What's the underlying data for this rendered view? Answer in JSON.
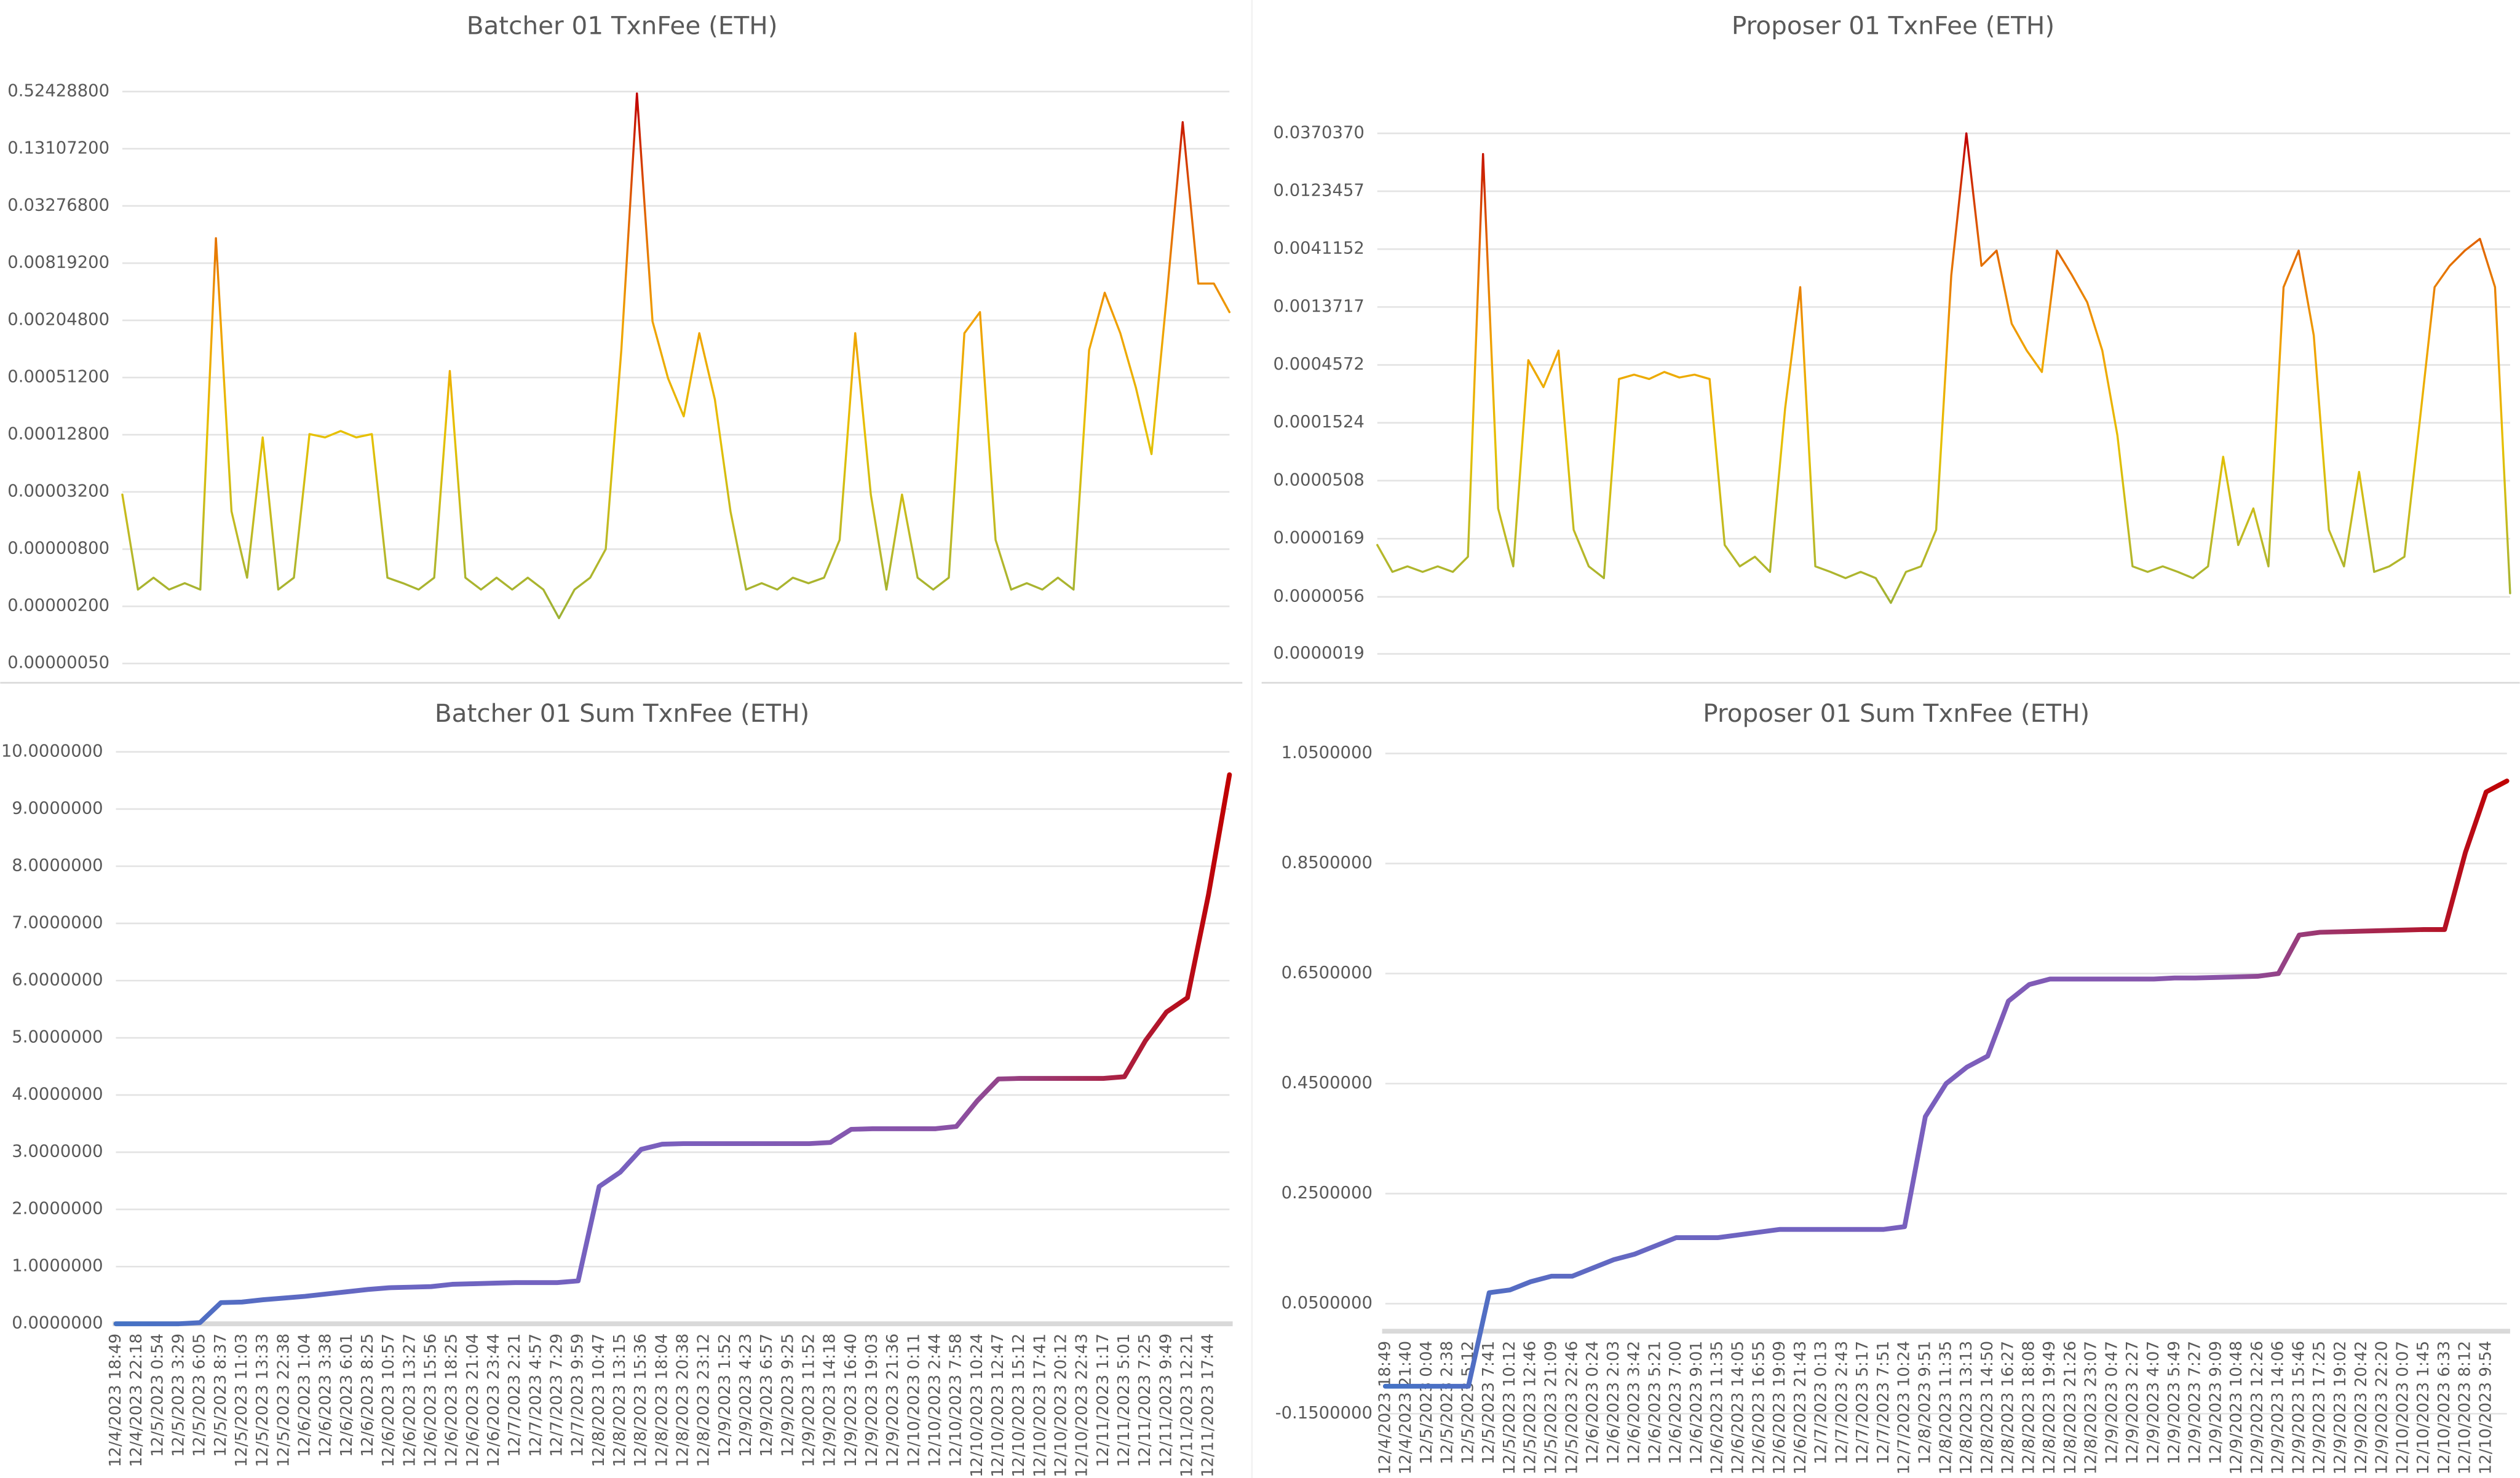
{
  "chart_data": [
    {
      "type": "line",
      "title": "Batcher 01 TxnFee (ETH)",
      "log_scale": true,
      "grid": true,
      "gradient_direction": "vertical",
      "color_stops": [
        "#8aac3a",
        "#b8b82a",
        "#e6c000",
        "#f0a000",
        "#e06000",
        "#c00000"
      ],
      "ylim": [
        5e-07,
        0.524288
      ],
      "yticks": [
        {
          "value": 5e-07,
          "label": "0.00000050"
        },
        {
          "value": 2e-06,
          "label": "0.00000200"
        },
        {
          "value": 8e-06,
          "label": "0.00000800"
        },
        {
          "value": 3.2e-05,
          "label": "0.00003200"
        },
        {
          "value": 0.000128,
          "label": "0.00012800"
        },
        {
          "value": 0.000512,
          "label": "0.00051200"
        },
        {
          "value": 0.002048,
          "label": "0.00204800"
        },
        {
          "value": 0.008192,
          "label": "0.00819200"
        },
        {
          "value": 0.032768,
          "label": "0.03276800"
        },
        {
          "value": 0.131072,
          "label": "0.13107200"
        },
        {
          "value": 0.524288,
          "label": "0.52428800"
        }
      ],
      "values": [
        3e-05,
        3e-06,
        4e-06,
        3e-06,
        3.5e-06,
        3e-06,
        0.015,
        2e-05,
        4e-06,
        0.00012,
        3e-06,
        4e-06,
        0.00013,
        0.00012,
        0.00014,
        0.00012,
        0.00013,
        4e-06,
        3.5e-06,
        3e-06,
        4e-06,
        0.0006,
        4e-06,
        3e-06,
        4e-06,
        3e-06,
        4e-06,
        3e-06,
        1.5e-06,
        3e-06,
        4e-06,
        8e-06,
        0.001,
        0.5,
        0.002,
        0.0005,
        0.0002,
        0.0015,
        0.0003,
        2e-05,
        3e-06,
        3.5e-06,
        3e-06,
        4e-06,
        3.5e-06,
        4e-06,
        1e-05,
        0.0015,
        3e-05,
        3e-06,
        3e-05,
        4e-06,
        3e-06,
        4e-06,
        0.0015,
        0.0025,
        1e-05,
        3e-06,
        3.5e-06,
        3e-06,
        4e-06,
        3e-06,
        0.001,
        0.004,
        0.0015,
        0.0004,
        8e-05,
        0.004,
        0.25,
        0.005,
        0.005,
        0.0025
      ]
    },
    {
      "type": "line",
      "title": "Proposer 01 TxnFee (ETH)",
      "log_scale": true,
      "grid": true,
      "gradient_direction": "vertical",
      "color_stops": [
        "#8aac3a",
        "#b8b82a",
        "#e6c000",
        "#f0a000",
        "#e06000",
        "#c00000"
      ],
      "ylim": [
        1.9e-06,
        0.037037
      ],
      "yticks": [
        {
          "value": 1.9e-06,
          "label": "0.0000019"
        },
        {
          "value": 5.6e-06,
          "label": "0.0000056"
        },
        {
          "value": 1.69e-05,
          "label": "0.0000169"
        },
        {
          "value": 5.08e-05,
          "label": "0.0000508"
        },
        {
          "value": 0.0001524,
          "label": "0.0001524"
        },
        {
          "value": 0.0004572,
          "label": "0.0004572"
        },
        {
          "value": 0.0013717,
          "label": "0.0013717"
        },
        {
          "value": 0.0041152,
          "label": "0.0041152"
        },
        {
          "value": 0.0123457,
          "label": "0.0123457"
        },
        {
          "value": 0.037037,
          "label": "0.0370370"
        }
      ],
      "values": [
        1.5e-05,
        9e-06,
        1e-05,
        9e-06,
        1e-05,
        9e-06,
        1.2e-05,
        0.025,
        3e-05,
        1e-05,
        0.0005,
        0.0003,
        0.0006,
        2e-05,
        1e-05,
        8e-06,
        0.00035,
        0.00038,
        0.00035,
        0.0004,
        0.00036,
        0.00038,
        0.00035,
        1.5e-05,
        1e-05,
        1.2e-05,
        9e-06,
        0.0002,
        0.002,
        1e-05,
        9e-06,
        8e-06,
        9e-06,
        8e-06,
        5e-06,
        9e-06,
        1e-05,
        2e-05,
        0.0025,
        0.037,
        0.003,
        0.004,
        0.001,
        0.0006,
        0.0004,
        0.004,
        0.0025,
        0.0015,
        0.0006,
        0.00012,
        1e-05,
        9e-06,
        1e-05,
        9e-06,
        8e-06,
        1e-05,
        8e-05,
        1.5e-05,
        3e-05,
        1e-05,
        0.002,
        0.004,
        0.0008,
        2e-05,
        1e-05,
        6e-05,
        9e-06,
        1e-05,
        1.2e-05,
        0.00015,
        0.002,
        0.003,
        0.004,
        0.005,
        0.002,
        6e-06
      ]
    },
    {
      "type": "line",
      "title": "Batcher 01 Sum TxnFee (ETH)",
      "log_scale": false,
      "grid": true,
      "gradient_direction": "horizontal",
      "color_stops": [
        "#4472c4",
        "#6a66c2",
        "#7b5fbd",
        "#8a52a6",
        "#c00000"
      ],
      "ylim": [
        0,
        10
      ],
      "yticks": [
        {
          "value": 0,
          "label": "0.0000000"
        },
        {
          "value": 1,
          "label": "1.0000000"
        },
        {
          "value": 2,
          "label": "2.0000000"
        },
        {
          "value": 3,
          "label": "3.0000000"
        },
        {
          "value": 4,
          "label": "4.0000000"
        },
        {
          "value": 5,
          "label": "5.0000000"
        },
        {
          "value": 6,
          "label": "6.0000000"
        },
        {
          "value": 7,
          "label": "7.0000000"
        },
        {
          "value": 8,
          "label": "8.0000000"
        },
        {
          "value": 9,
          "label": "9.0000000"
        },
        {
          "value": 10,
          "label": "10.0000000"
        }
      ],
      "categories": [
        "12/4/2023 18:49",
        "12/4/2023 22:18",
        "12/5/2023 0:54",
        "12/5/2023 3:29",
        "12/5/2023 6:05",
        "12/5/2023 8:37",
        "12/5/2023 11:03",
        "12/5/2023 13:33",
        "12/5/2023 22:38",
        "12/6/2023 1:04",
        "12/6/2023 3:38",
        "12/6/2023 6:01",
        "12/6/2023 8:25",
        "12/6/2023 10:57",
        "12/6/2023 13:27",
        "12/6/2023 15:56",
        "12/6/2023 18:25",
        "12/6/2023 21:04",
        "12/6/2023 23:44",
        "12/7/2023 2:21",
        "12/7/2023 4:57",
        "12/7/2023 7:29",
        "12/7/2023 9:59",
        "12/8/2023 10:47",
        "12/8/2023 13:15",
        "12/8/2023 15:36",
        "12/8/2023 18:04",
        "12/8/2023 20:38",
        "12/8/2023 23:12",
        "12/9/2023 1:52",
        "12/9/2023 4:23",
        "12/9/2023 6:57",
        "12/9/2023 9:25",
        "12/9/2023 11:52",
        "12/9/2023 14:18",
        "12/9/2023 16:40",
        "12/9/2023 19:03",
        "12/9/2023 21:36",
        "12/10/2023 0:11",
        "12/10/2023 2:44",
        "12/10/2023 7:58",
        "12/10/2023 10:24",
        "12/10/2023 12:47",
        "12/10/2023 15:12",
        "12/10/2023 17:41",
        "12/10/2023 20:12",
        "12/10/2023 22:43",
        "12/11/2023 1:17",
        "12/11/2023 5:01",
        "12/11/2023 7:25",
        "12/11/2023 9:49",
        "12/11/2023 12:21",
        "12/11/2023 17:44",
        null
      ],
      "values": [
        0,
        0,
        0,
        0,
        0.02,
        0.37,
        0.38,
        0.42,
        0.45,
        0.48,
        0.52,
        0.56,
        0.6,
        0.63,
        0.64,
        0.65,
        0.69,
        0.7,
        0.71,
        0.72,
        0.72,
        0.72,
        0.75,
        2.4,
        2.65,
        3.05,
        3.14,
        3.15,
        3.15,
        3.15,
        3.15,
        3.15,
        3.15,
        3.15,
        3.17,
        3.4,
        3.41,
        3.41,
        3.41,
        3.41,
        3.45,
        3.9,
        4.28,
        4.29,
        4.29,
        4.29,
        4.29,
        4.29,
        4.32,
        4.95,
        5.45,
        5.7,
        7.5,
        9.6
      ]
    },
    {
      "type": "line",
      "title": "Proposer 01 Sum TxnFee (ETH)",
      "log_scale": false,
      "grid": true,
      "gradient_direction": "horizontal",
      "color_stops": [
        "#4472c4",
        "#6a66c2",
        "#7b5fbd",
        "#8a52a6",
        "#c00000"
      ],
      "ylim": [
        -0.15,
        1.05
      ],
      "yticks": [
        {
          "value": -0.15,
          "label": "-0.1500000"
        },
        {
          "value": 0.05,
          "label": "0.0500000"
        },
        {
          "value": 0.25,
          "label": "0.2500000"
        },
        {
          "value": 0.45,
          "label": "0.4500000"
        },
        {
          "value": 0.65,
          "label": "0.6500000"
        },
        {
          "value": 0.85,
          "label": "0.8500000"
        },
        {
          "value": 1.05,
          "label": "1.0500000"
        }
      ],
      "categories": [
        "12/4/2023 18:49",
        "12/4/2023 21:40",
        "12/5/2023 0:04",
        "12/5/2023 2:38",
        "12/5/2023 5:12",
        "12/5/2023 7:41",
        "12/5/2023 10:12",
        "12/5/2023 12:46",
        "12/5/2023 21:09",
        "12/5/2023 22:46",
        "12/6/2023 0:24",
        "12/6/2023 2:03",
        "12/6/2023 3:42",
        "12/6/2023 5:21",
        "12/6/2023 7:00",
        "12/6/2023 9:01",
        "12/6/2023 11:35",
        "12/6/2023 14:05",
        "12/6/2023 16:55",
        "12/6/2023 19:09",
        "12/6/2023 21:43",
        "12/7/2023 0:13",
        "12/7/2023 2:43",
        "12/7/2023 5:17",
        "12/7/2023 7:51",
        "12/7/2023 10:24",
        "12/8/2023 9:51",
        "12/8/2023 11:35",
        "12/8/2023 13:13",
        "12/8/2023 14:50",
        "12/8/2023 16:27",
        "12/8/2023 18:08",
        "12/8/2023 19:49",
        "12/8/2023 21:26",
        "12/8/2023 23:07",
        "12/9/2023 0:47",
        "12/9/2023 2:27",
        "12/9/2023 4:07",
        "12/9/2023 5:49",
        "12/9/2023 7:27",
        "12/9/2023 9:09",
        "12/9/2023 10:48",
        "12/9/2023 12:26",
        "12/9/2023 14:06",
        "12/9/2023 15:46",
        "12/9/2023 17:25",
        "12/9/2023 19:02",
        "12/9/2023 20:42",
        "12/9/2023 22:20",
        "12/10/2023 0:07",
        "12/10/2023 1:45",
        "12/10/2023 6:33",
        "12/10/2023 8:12",
        "12/10/2023 9:54",
        null
      ],
      "values": [
        -0.1,
        -0.1,
        -0.1,
        -0.1,
        -0.1,
        0.07,
        0.075,
        0.09,
        0.1,
        0.1,
        0.115,
        0.13,
        0.14,
        0.155,
        0.17,
        0.17,
        0.17,
        0.175,
        0.18,
        0.185,
        0.185,
        0.185,
        0.185,
        0.185,
        0.185,
        0.19,
        0.39,
        0.45,
        0.48,
        0.5,
        0.6,
        0.63,
        0.64,
        0.64,
        0.64,
        0.64,
        0.64,
        0.64,
        0.642,
        0.642,
        0.643,
        0.644,
        0.645,
        0.65,
        0.72,
        0.725,
        0.726,
        0.727,
        0.728,
        0.729,
        0.73,
        0.73,
        0.87,
        0.98,
        1.0
      ]
    }
  ]
}
